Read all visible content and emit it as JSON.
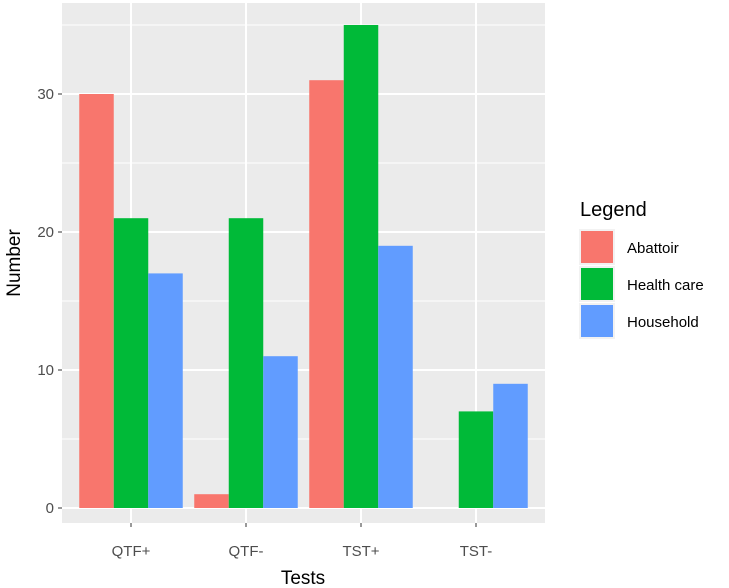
{
  "chart_data": {
    "type": "bar",
    "title": "",
    "xlabel": "Tests",
    "ylabel": "Number",
    "categories": [
      "QTF+",
      "QTF-",
      "TST+",
      "TST-"
    ],
    "series": [
      {
        "name": "Abattoir",
        "color": "#F8766D",
        "values": [
          30,
          1,
          31,
          0
        ]
      },
      {
        "name": "Health care",
        "color": "#00BA38",
        "values": [
          21,
          21,
          35,
          7
        ]
      },
      {
        "name": "Household",
        "color": "#619CFF",
        "values": [
          17,
          11,
          19,
          9
        ]
      }
    ],
    "y_ticks": [
      0,
      10,
      20,
      30
    ],
    "ylim": [
      0,
      36.5
    ],
    "grid": true,
    "legend": {
      "title": "Legend",
      "position": "right"
    },
    "panel_background": "#EBEBEB",
    "grid_color": "#FFFFFF"
  }
}
